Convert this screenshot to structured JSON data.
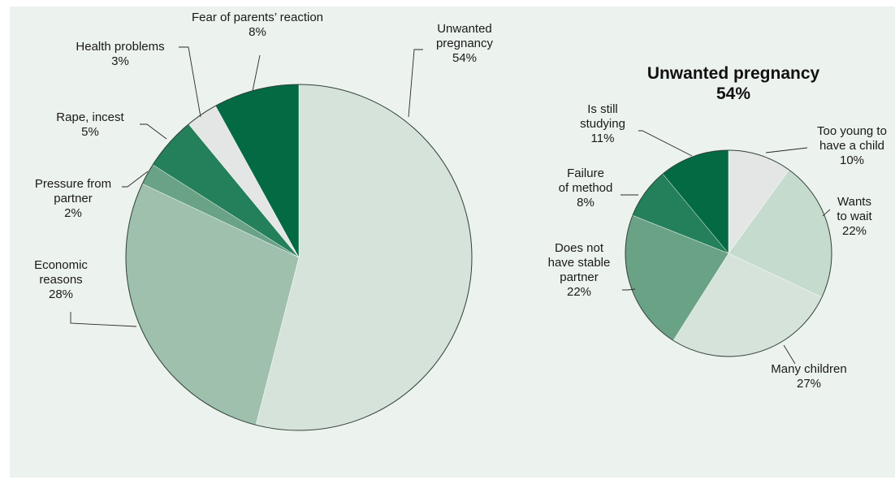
{
  "chart_data": [
    {
      "type": "pie",
      "title": "",
      "start": "12 o'clock, clockwise",
      "slices": [
        {
          "label_lines": [
            "Unwanted",
            "pregnancy"
          ],
          "value": 54,
          "value_label": "54%",
          "color": "#d5e3da"
        },
        {
          "label_lines": [
            "Economic",
            "reasons"
          ],
          "value": 28,
          "value_label": "28%",
          "color": "#9ec0ad"
        },
        {
          "label_lines": [
            "Pressure from",
            "partner"
          ],
          "value": 2,
          "value_label": "2%",
          "color": "#6aa286"
        },
        {
          "label_lines": [
            "Rape, incest"
          ],
          "value": 5,
          "value_label": "5%",
          "color": "#24805a"
        },
        {
          "label_lines": [
            "Health problems"
          ],
          "value": 3,
          "value_label": "3%",
          "color": "#e3e6e4"
        },
        {
          "label_lines": [
            "Fear of parents’ reaction"
          ],
          "value": 8,
          "value_label": "8%",
          "color": "#046a43"
        }
      ]
    },
    {
      "type": "pie",
      "title": "Unwanted pregnancy",
      "subtitle": "54%",
      "start": "12 o'clock, clockwise",
      "slices": [
        {
          "label_lines": [
            "Too young to",
            "have a child"
          ],
          "value": 10,
          "value_label": "10%",
          "color": "#e3e6e4"
        },
        {
          "label_lines": [
            "Wants",
            "to wait"
          ],
          "value": 22,
          "value_label": "22%",
          "color": "#c5dbcd"
        },
        {
          "label_lines": [
            "Many children"
          ],
          "value": 27,
          "value_label": "27%",
          "color": "#d5e3da"
        },
        {
          "label_lines": [
            "Does not",
            "have stable",
            "partner"
          ],
          "value": 22,
          "value_label": "22%",
          "color": "#6aa286"
        },
        {
          "label_lines": [
            "Failure",
            "of method"
          ],
          "value": 8,
          "value_label": "8%",
          "color": "#24805a"
        },
        {
          "label_lines": [
            "Is still",
            "studying"
          ],
          "value": 11,
          "value_label": "11%",
          "color": "#046a43"
        }
      ]
    }
  ]
}
